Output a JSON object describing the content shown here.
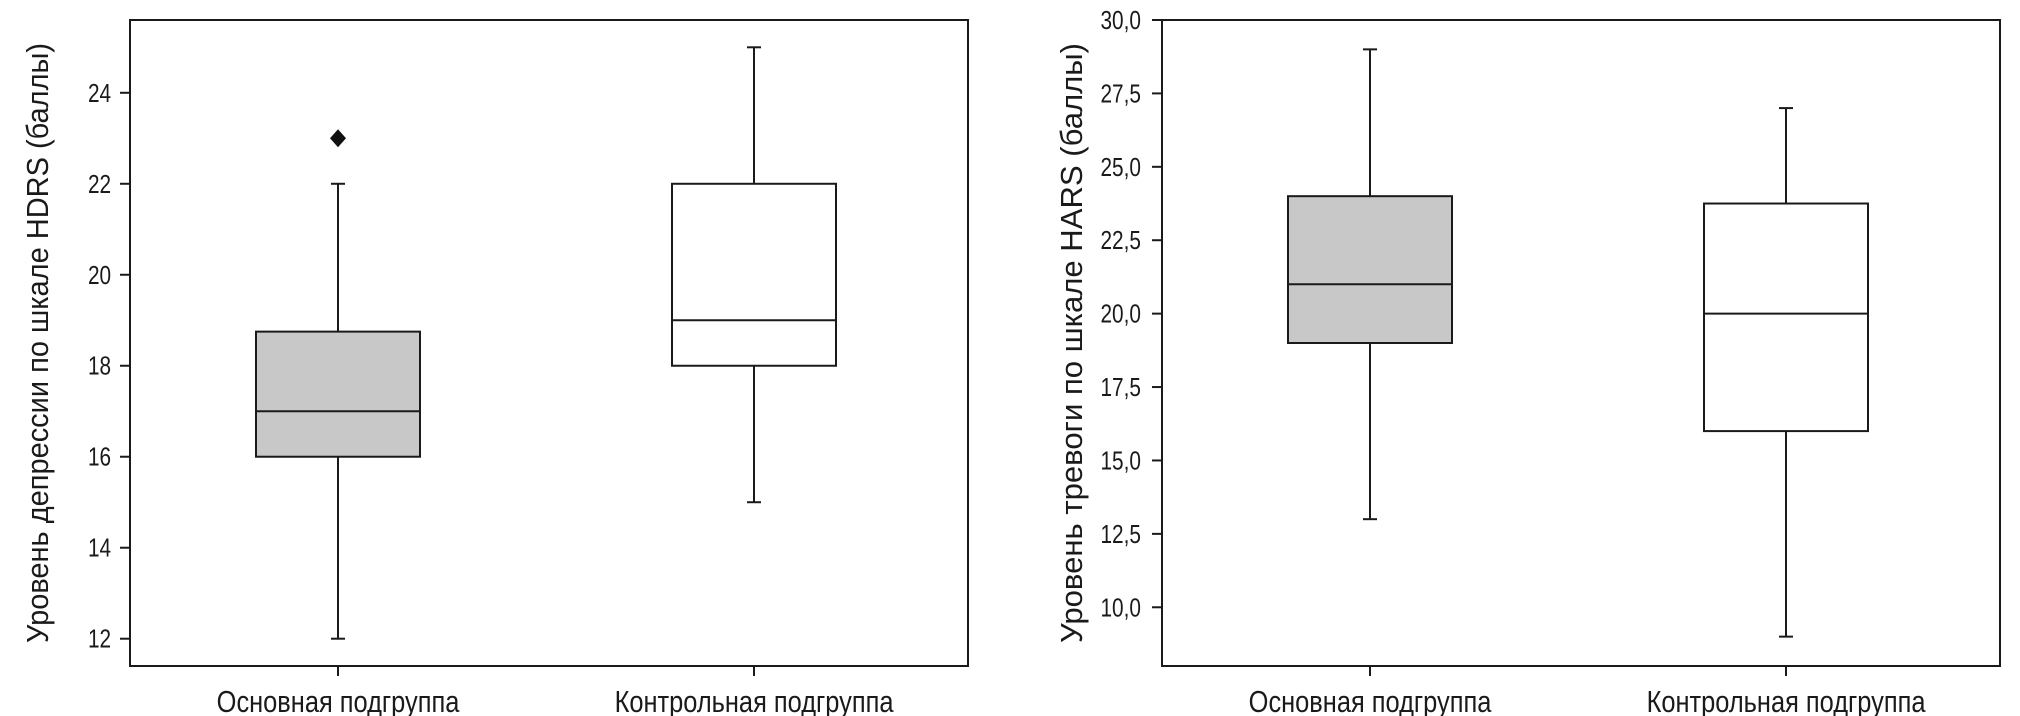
{
  "chart_data": [
    {
      "type": "box",
      "title": "",
      "xlabel": "",
      "ylabel": "Уровень депрессии по шкале HDRS (баллы)",
      "ylim": [
        11.4,
        25.6
      ],
      "yticks": [
        12,
        14,
        16,
        18,
        20,
        22,
        24
      ],
      "ytick_labels": [
        "12",
        "14",
        "16",
        "18",
        "20",
        "22",
        "24"
      ],
      "categories": [
        "Основная подгруппа",
        "Контрольная подгруппа"
      ],
      "boxes": [
        {
          "category": "Основная подгруппа",
          "whisker_low": 12,
          "q1": 16,
          "median": 17,
          "q3": 18.75,
          "whisker_high": 22,
          "outliers": [
            23
          ],
          "fill": "#c8c8c8"
        },
        {
          "category": "Контрольная подгруппа",
          "whisker_low": 15,
          "q1": 18,
          "median": 19,
          "q3": 22,
          "whisker_high": 25,
          "outliers": [],
          "fill": "#ffffff"
        }
      ]
    },
    {
      "type": "box",
      "title": "",
      "xlabel": "",
      "ylabel": "Уровень тревоги по шкале HARS (баллы)",
      "ylim": [
        8.0,
        30.0
      ],
      "yticks": [
        10,
        12.5,
        15,
        17.5,
        20,
        22.5,
        25,
        27.5,
        30
      ],
      "ytick_labels": [
        "10,0",
        "12,5",
        "15,0",
        "17,5",
        "20,0",
        "22,5",
        "25,0",
        "27,5",
        "30,0"
      ],
      "categories": [
        "Основная подгруппа",
        "Контрольная подгруппа"
      ],
      "boxes": [
        {
          "category": "Основная подгруппа",
          "whisker_low": 13,
          "q1": 19,
          "median": 21,
          "q3": 24,
          "whisker_high": 29,
          "outliers": [],
          "fill": "#c8c8c8"
        },
        {
          "category": "Контрольная подгруппа",
          "whisker_low": 9,
          "q1": 16,
          "median": 20,
          "q3": 23.75,
          "whisker_high": 27,
          "outliers": [],
          "fill": "#ffffff"
        }
      ]
    }
  ]
}
